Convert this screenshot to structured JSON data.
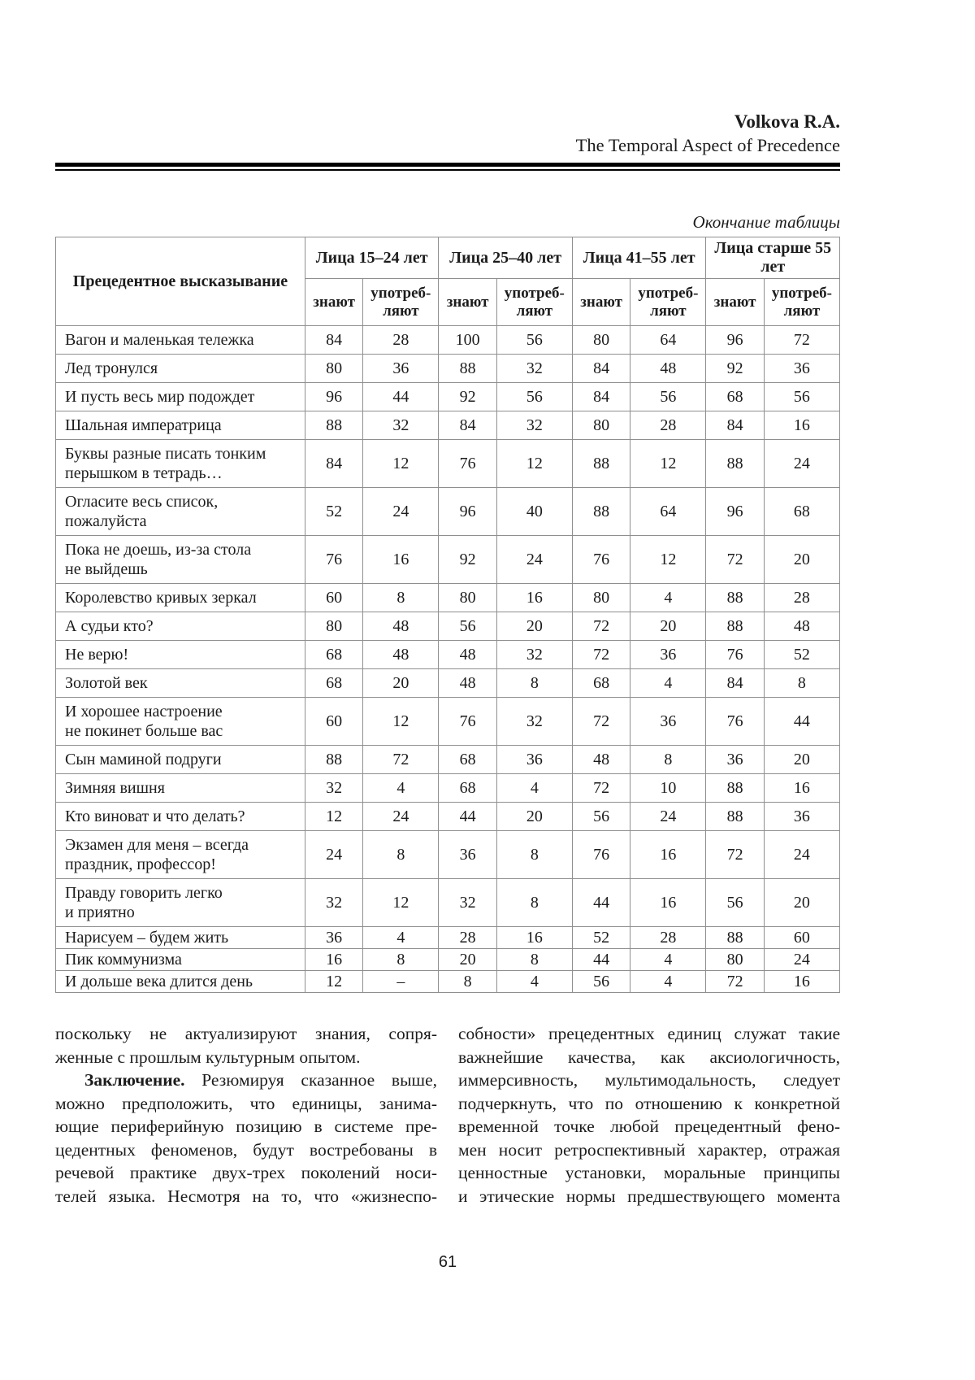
{
  "header": {
    "author": "Volkova R.A.",
    "article_title": "The Temporal Aspect of Precedence"
  },
  "table_caption": "Окончание таблицы",
  "table": {
    "phrase_column_header": "Прецедентное высказывание",
    "age_groups": [
      "Лица 15–24 лет",
      "Лица 25–40 лет",
      "Лица 41–55 лет",
      "Лица старше 55 лет"
    ],
    "subheader_know": "знают",
    "subheader_use": "употреб-\nляют",
    "rows": [
      {
        "phrase": "Вагон и маленькая тележка",
        "values": [
          "84",
          "28",
          "100",
          "56",
          "80",
          "64",
          "96",
          "72"
        ]
      },
      {
        "phrase": "Лед тронулся",
        "values": [
          "80",
          "36",
          "88",
          "32",
          "84",
          "48",
          "92",
          "36"
        ]
      },
      {
        "phrase": "И пусть весь мир подождет",
        "values": [
          "96",
          "44",
          "92",
          "56",
          "84",
          "56",
          "68",
          "56"
        ]
      },
      {
        "phrase": "Шальная императрица",
        "values": [
          "88",
          "32",
          "84",
          "32",
          "80",
          "28",
          "84",
          "16"
        ]
      },
      {
        "phrase": "Буквы разные писать тонким\nперышком в тетрадь…",
        "values": [
          "84",
          "12",
          "76",
          "12",
          "88",
          "12",
          "88",
          "24"
        ]
      },
      {
        "phrase": "Огласите весь список,\nпожалуйста",
        "values": [
          "52",
          "24",
          "96",
          "40",
          "88",
          "64",
          "96",
          "68"
        ]
      },
      {
        "phrase": "Пока не доешь, из-за стола\nне выйдешь",
        "values": [
          "76",
          "16",
          "92",
          "24",
          "76",
          "12",
          "72",
          "20"
        ]
      },
      {
        "phrase": "Королевство кривых зеркал",
        "values": [
          "60",
          "8",
          "80",
          "16",
          "80",
          "4",
          "88",
          "28"
        ]
      },
      {
        "phrase": "А судьи кто?",
        "values": [
          "80",
          "48",
          "56",
          "20",
          "72",
          "20",
          "88",
          "48"
        ]
      },
      {
        "phrase": "Не верю!",
        "values": [
          "68",
          "48",
          "48",
          "32",
          "72",
          "36",
          "76",
          "52"
        ]
      },
      {
        "phrase": "Золотой век",
        "values": [
          "68",
          "20",
          "48",
          "8",
          "68",
          "4",
          "84",
          "8"
        ]
      },
      {
        "phrase": "И хорошее настроение\nне покинет больше вас",
        "values": [
          "60",
          "12",
          "76",
          "32",
          "72",
          "36",
          "76",
          "44"
        ]
      },
      {
        "phrase": "Сын маминой подруги",
        "values": [
          "88",
          "72",
          "68",
          "36",
          "48",
          "8",
          "36",
          "20"
        ]
      },
      {
        "phrase": "Зимняя вишня",
        "values": [
          "32",
          "4",
          "68",
          "4",
          "72",
          "10",
          "88",
          "16"
        ]
      },
      {
        "phrase": "Кто виноват и что делать?",
        "values": [
          "12",
          "24",
          "44",
          "20",
          "56",
          "24",
          "88",
          "36"
        ]
      },
      {
        "phrase": "Экзамен для меня – всегда\nпраздник, профессор!",
        "values": [
          "24",
          "8",
          "36",
          "8",
          "76",
          "16",
          "72",
          "24"
        ]
      },
      {
        "phrase": "Правду говорить легко\nи приятно",
        "values": [
          "32",
          "12",
          "32",
          "8",
          "44",
          "16",
          "56",
          "20"
        ]
      },
      {
        "phrase": "Нарисуем – будем жить",
        "values": [
          "36",
          "4",
          "28",
          "16",
          "52",
          "28",
          "88",
          "60"
        ]
      },
      {
        "phrase": "Пик коммунизма",
        "values": [
          "16",
          "8",
          "20",
          "8",
          "44",
          "4",
          "80",
          "24"
        ]
      },
      {
        "phrase": "И дольше века длится день",
        "values": [
          "12",
          "–",
          "8",
          "4",
          "56",
          "4",
          "72",
          "16"
        ]
      }
    ]
  },
  "body": {
    "left_lines": [
      {
        "text": "поскольку не актуализируют знания, сопря-",
        "justify": true
      },
      {
        "text": "женные с прошлым культурным опытом.",
        "justify": false
      },
      {
        "bold": "Заключение.",
        "text": " Резюмируя сказанное выше,",
        "justify": true,
        "indent": true
      },
      {
        "text": "можно предположить, что единицы, занима-",
        "justify": true
      },
      {
        "text": "ющие периферийную позицию в системе пре-",
        "justify": true
      },
      {
        "text": "цедентных феноменов, будут востребованы в",
        "justify": true
      },
      {
        "text": "речевой практике двух-трех поколений носи-",
        "justify": true
      },
      {
        "text": "телей языка. Несмотря на то, что «жизнеспо-",
        "justify": true
      }
    ],
    "right_lines": [
      {
        "text": "собности» прецедентных единиц служат такие",
        "justify": true
      },
      {
        "text": "важнейшие качества, как аксиологичность,",
        "justify": true
      },
      {
        "text": "иммерсивность, мультимодальность, следует",
        "justify": true
      },
      {
        "text": "подчеркнуть, что по отношению к конкретной",
        "justify": true
      },
      {
        "text": "временной точке любой прецедентный фено-",
        "justify": true
      },
      {
        "text": "мен носит ретроспективный характер, отражая",
        "justify": true
      },
      {
        "text": "ценностные установки, моральные принципы",
        "justify": true
      },
      {
        "text": "и этические нормы предшествующего момента",
        "justify": true
      }
    ]
  },
  "page_number": "61",
  "colors": {
    "text": "#1c1c1c",
    "table_border": "#8f8f8f",
    "rule": "#000000",
    "background": "#ffffff"
  }
}
